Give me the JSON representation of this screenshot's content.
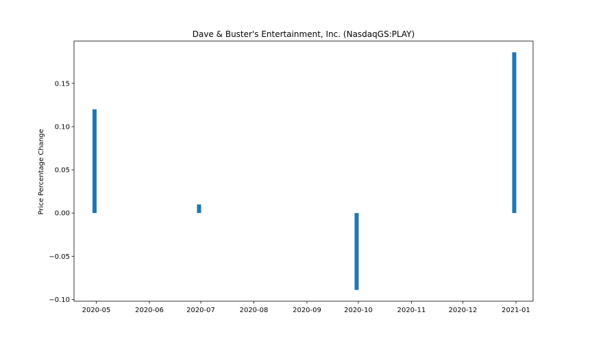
{
  "chart_data": {
    "type": "bar",
    "title": "Dave & Buster's Entertainment, Inc. (NasdaqGS:PLAY)",
    "xlabel": "",
    "ylabel": "Price Percentage Change",
    "x": [
      "2020-04-30",
      "2020-06-30",
      "2020-09-30",
      "2020-12-31"
    ],
    "values": [
      0.12,
      0.01,
      -0.089,
      0.186
    ],
    "xlim": [
      "2020-04-18",
      "2021-01-11"
    ],
    "ylim": [
      -0.102,
      0.199
    ],
    "x_ticks": [
      "2020-05-01",
      "2020-06-01",
      "2020-07-01",
      "2020-08-01",
      "2020-09-01",
      "2020-10-01",
      "2020-11-01",
      "2020-12-01",
      "2021-01-01"
    ],
    "x_tick_labels": [
      "2020-05",
      "2020-06",
      "2020-07",
      "2020-08",
      "2020-09",
      "2020-10",
      "2020-11",
      "2020-12",
      "2021-01"
    ],
    "y_ticks": [
      -0.1,
      -0.05,
      0.0,
      0.05,
      0.1,
      0.15
    ],
    "y_tick_labels": [
      "−0.10",
      "−0.05",
      "0.00",
      "0.05",
      "0.10",
      "0.15"
    ],
    "grid": false,
    "bar_color": "#1f77b4"
  }
}
